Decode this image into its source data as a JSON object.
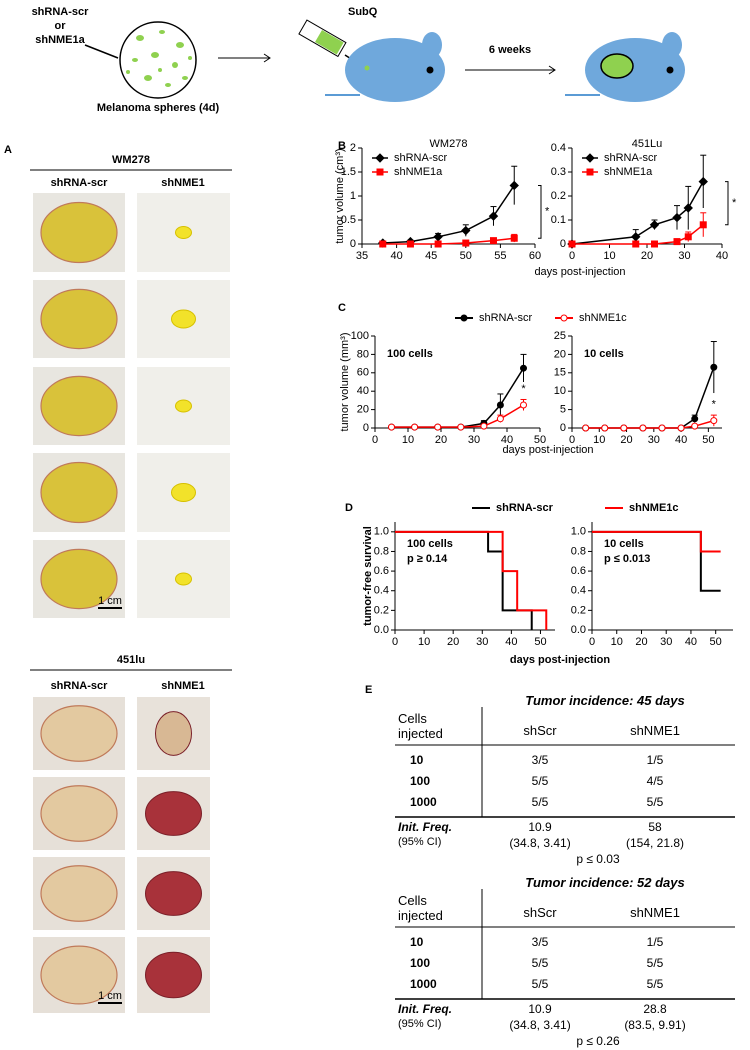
{
  "schematic": {
    "condition": [
      "shRNA-scr",
      "or",
      "shNME1a"
    ],
    "sphere_label": "Melanoma spheres (4d)",
    "injection": "SubQ",
    "interval": "6 weeks"
  },
  "panel_a": {
    "letter": "A",
    "groups": [
      {
        "title": "WM278",
        "columns": [
          "shRNA-scr",
          "shNME1"
        ],
        "scale_bar": "1 cm"
      },
      {
        "title": "451lu",
        "columns": [
          "shRNA-scr",
          "shNME1"
        ],
        "scale_bar": "1 cm"
      }
    ]
  },
  "panel_b": {
    "letter": "B",
    "y_label": "tumor volume (cm³)",
    "x_label": "days post-injection"
  },
  "panel_c": {
    "letter": "C",
    "y_label": "tumor volume (mm³)",
    "x_label": "days post-injection"
  },
  "panel_d": {
    "letter": "D",
    "y_label": "tumor-free survival",
    "x_label": "days post-injection"
  },
  "chart_data": [
    {
      "type": "line",
      "title": "WM278",
      "x": [
        38,
        42,
        46,
        50,
        54,
        57
      ],
      "xlim": [
        35,
        60
      ],
      "xticks": [
        35,
        40,
        45,
        50,
        55,
        60
      ],
      "ylim": [
        0,
        2
      ],
      "yticks": [
        0,
        0.5,
        1,
        1.5,
        2
      ],
      "legend": "top-left",
      "significance": "*",
      "series": [
        {
          "name": "shRNA-scr",
          "color": "#000000",
          "marker": "diamond",
          "values": [
            0.02,
            0.05,
            0.15,
            0.28,
            0.58,
            1.22
          ],
          "errors": [
            0.01,
            0.03,
            0.07,
            0.12,
            0.2,
            0.4
          ]
        },
        {
          "name": "shNME1a",
          "color": "#ff0000",
          "marker": "square",
          "values": [
            0,
            0,
            0,
            0.02,
            0.07,
            0.12
          ],
          "errors": [
            0,
            0,
            0,
            0.02,
            0.04,
            0.08
          ]
        }
      ]
    },
    {
      "type": "line",
      "title": "451Lu",
      "x": [
        0,
        17,
        22,
        28,
        31,
        35
      ],
      "xlim": [
        0,
        40
      ],
      "xticks": [
        0,
        10,
        20,
        30,
        40
      ],
      "ylim": [
        0,
        0.4
      ],
      "yticks": [
        0,
        0.1,
        0.2,
        0.3,
        0.4
      ],
      "legend": "top-left",
      "significance": "*",
      "series": [
        {
          "name": "shRNA-scr",
          "color": "#000000",
          "marker": "diamond",
          "values": [
            0,
            0.03,
            0.08,
            0.11,
            0.15,
            0.26
          ],
          "errors": [
            0,
            0.03,
            0.02,
            0.05,
            0.09,
            0.11
          ]
        },
        {
          "name": "shNME1a",
          "color": "#ff0000",
          "marker": "square",
          "values": [
            0,
            0,
            0,
            0.01,
            0.03,
            0.08
          ],
          "errors": [
            0,
            0,
            0,
            0.01,
            0.02,
            0.05
          ]
        }
      ]
    },
    {
      "type": "line",
      "annotation": "100 cells",
      "x": [
        5,
        12,
        19,
        26,
        33,
        38,
        45
      ],
      "xlim": [
        0,
        50
      ],
      "xticks": [
        0,
        10,
        20,
        30,
        40,
        50
      ],
      "ylim": [
        0,
        100
      ],
      "yticks": [
        0,
        20,
        40,
        60,
        80,
        100
      ],
      "series": [
        {
          "name": "shRNA-scr",
          "color": "#000000",
          "marker": "circle",
          "values": [
            1,
            1,
            1,
            1,
            5,
            25,
            65
          ],
          "errors": [
            0,
            0,
            0,
            0,
            3,
            12,
            15
          ]
        },
        {
          "name": "shNME1c",
          "color": "#ff0000",
          "marker": "open-circle",
          "values": [
            1,
            1,
            1,
            1,
            2,
            10,
            25
          ],
          "errors": [
            0,
            0,
            0,
            0,
            1,
            4,
            6
          ],
          "significance": "*"
        }
      ]
    },
    {
      "type": "line",
      "annotation": "10 cells",
      "x": [
        5,
        12,
        19,
        26,
        33,
        40,
        45,
        52
      ],
      "xlim": [
        0,
        55
      ],
      "xticks": [
        0,
        10,
        20,
        30,
        40,
        50
      ],
      "ylim": [
        0,
        25
      ],
      "yticks": [
        0,
        5,
        10,
        15,
        20,
        25
      ],
      "series": [
        {
          "color": "#000000",
          "marker": "circle",
          "values": [
            0,
            0,
            0,
            0,
            0,
            0,
            2.5,
            16.5
          ],
          "errors": [
            0,
            0,
            0,
            0,
            0,
            0,
            1,
            7
          ]
        },
        {
          "color": "#ff0000",
          "marker": "open-circle",
          "values": [
            0,
            0,
            0,
            0,
            0,
            0,
            0.5,
            2
          ],
          "errors": [
            0,
            0,
            0,
            0,
            0,
            0,
            0.3,
            1.5
          ],
          "significance": "*"
        }
      ]
    },
    {
      "type": "step",
      "annotation": "100 cells",
      "p_value": "p ≥ 0.14",
      "xlim": [
        0,
        55
      ],
      "xticks": [
        0,
        10,
        20,
        30,
        40,
        50
      ],
      "ylim": [
        0,
        1.1
      ],
      "yticks": [
        {
          "value": 0,
          "label": "0.0"
        },
        0.2,
        0.4,
        0.6,
        0.8,
        {
          "value": 1,
          "label": "1.0"
        }
      ],
      "series": [
        {
          "name": "shRNA-scr",
          "color": "#000000",
          "marker": "none",
          "x": [
            0,
            32,
            37,
            47
          ],
          "values": [
            1,
            0.8,
            0.2,
            0
          ]
        },
        {
          "name": "shNME1c",
          "color": "#ff0000",
          "marker": "none",
          "x": [
            0,
            37,
            42,
            52
          ],
          "values": [
            1,
            0.6,
            0.2,
            0
          ]
        }
      ]
    },
    {
      "type": "step",
      "annotation": "10 cells",
      "p_value": "p ≤ 0.013",
      "xlim": [
        0,
        57
      ],
      "xticks": [
        0,
        10,
        20,
        30,
        40,
        50
      ],
      "ylim": [
        0,
        1.1
      ],
      "yticks": [
        {
          "value": 0,
          "label": "0.0"
        },
        0.2,
        0.4,
        0.6,
        0.8,
        {
          "value": 1,
          "label": "1.0"
        }
      ],
      "series": [
        {
          "color": "#000000",
          "marker": "none",
          "x": [
            0,
            44,
            52
          ],
          "values": [
            1,
            0.4,
            0.4
          ]
        },
        {
          "color": "#ff0000",
          "marker": "none",
          "x": [
            0,
            44,
            52
          ],
          "values": [
            1,
            0.8,
            0.8
          ]
        }
      ]
    }
  ],
  "panel_e": {
    "letter": "E",
    "tables": [
      {
        "caption": "Tumor incidence: 45 days",
        "header": [
          "Cells injected",
          "shScr",
          "shNME1"
        ],
        "rows": [
          [
            "10",
            "3/5",
            "1/5"
          ],
          [
            "100",
            "5/5",
            "4/5"
          ],
          [
            "1000",
            "5/5",
            "5/5"
          ]
        ],
        "frequency": [
          "Init. Freq.",
          "10.9",
          "58"
        ],
        "interval": [
          "(95% CI)",
          "(34.8, 3.41)",
          "(154, 21.8)"
        ],
        "p_value": "p ≤ 0.03"
      },
      {
        "caption": "Tumor incidence: 52 days",
        "header": [
          "Cells injected",
          "shScr",
          "shNME1"
        ],
        "rows": [
          [
            "10",
            "3/5",
            "1/5"
          ],
          [
            "100",
            "5/5",
            "5/5"
          ],
          [
            "1000",
            "5/5",
            "5/5"
          ]
        ],
        "frequency": [
          "Init. Freq.",
          "10.9",
          "28.8"
        ],
        "interval": [
          "(95% CI)",
          "(34.8, 3.41)",
          "(83.5, 9.91)"
        ],
        "p_value": "p ≤ 0.26"
      }
    ]
  }
}
